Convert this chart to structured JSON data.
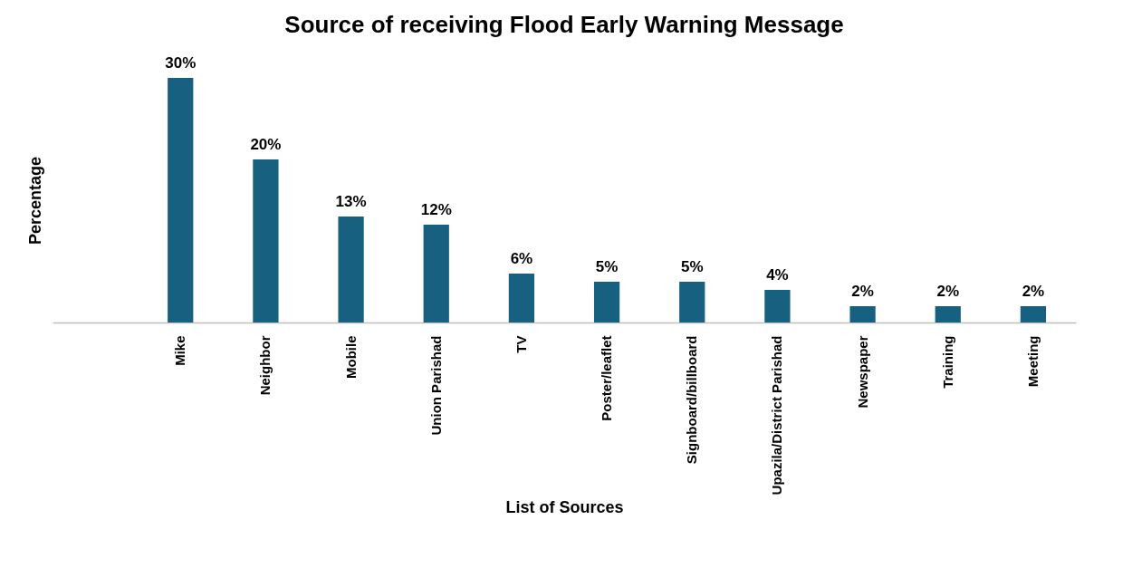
{
  "chart_data": {
    "type": "bar",
    "title": "Source of receiving  Flood Early Warning Message",
    "xlabel": "List of Sources",
    "ylabel": "Percentage",
    "categories": [
      null,
      "Mike",
      "Neighbor",
      "Mobile",
      "Union Parishad",
      "TV",
      "Poster/leaflet",
      "Signboard/billboard",
      "Upazila/District Parishad",
      "Newspaper",
      "Training",
      "Meeting"
    ],
    "values": [
      null,
      30,
      20,
      13,
      12,
      6,
      5,
      5,
      4,
      2,
      2,
      2
    ],
    "value_labels": [
      null,
      "30%",
      "20%",
      "13%",
      "12%",
      "6%",
      "5%",
      "5%",
      "4%",
      "2%",
      "2%",
      "2%"
    ],
    "color": "#17607f",
    "tick_labels": "x",
    "grid": false
  }
}
